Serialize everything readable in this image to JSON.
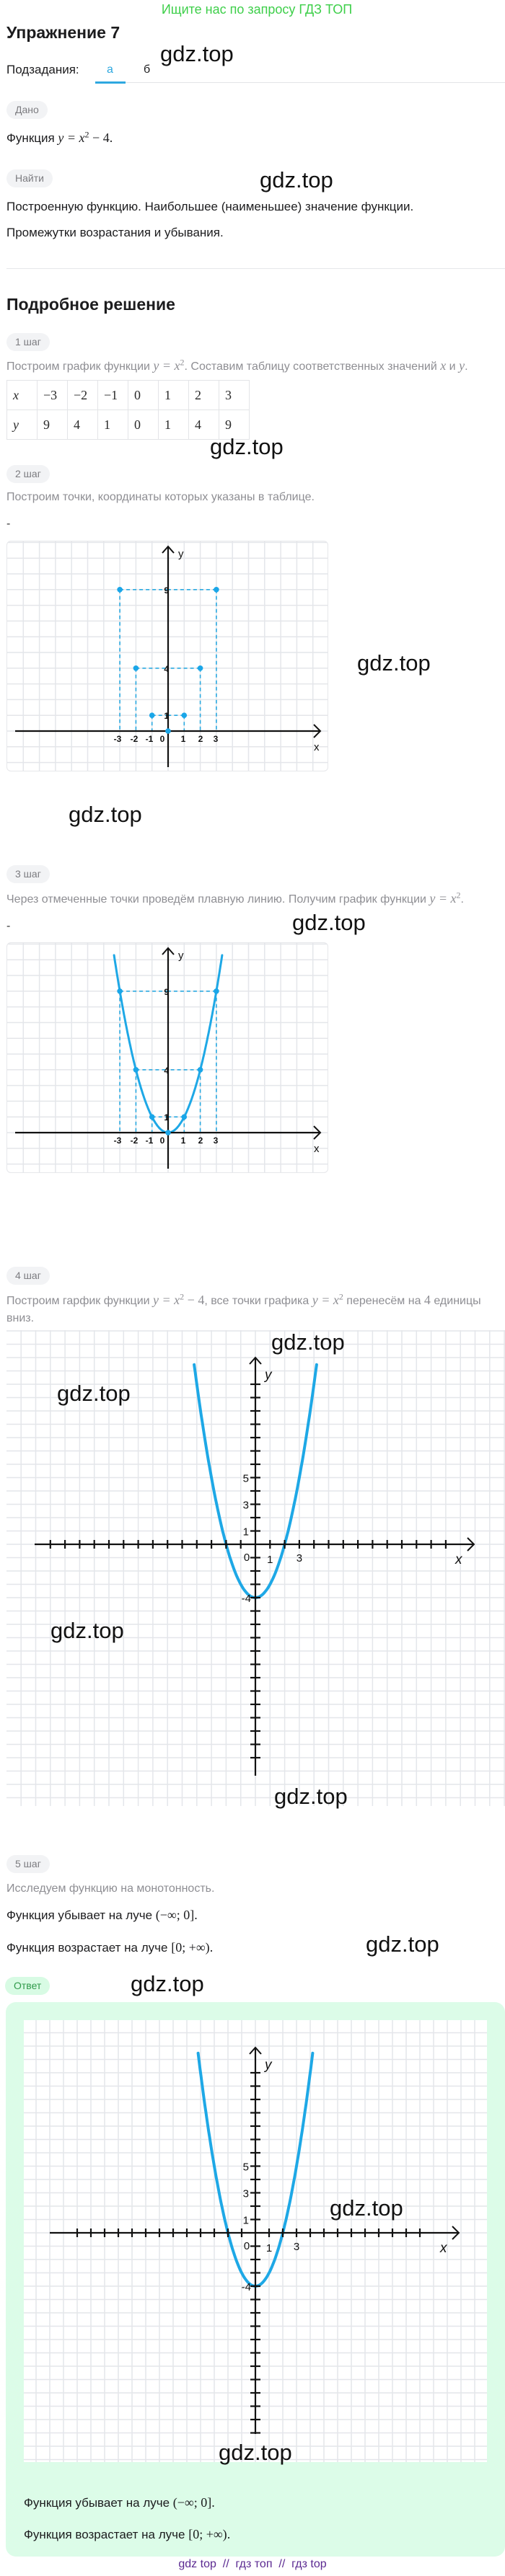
{
  "banner": "Ищите нас по запросу ГДЗ ТОП",
  "title": "Упражнение 7",
  "subtasks": {
    "label": "Подзадания:",
    "tabs": [
      "а",
      "б"
    ],
    "active": "а"
  },
  "given": {
    "badge": "Дано",
    "prefix": "Функция ",
    "math": "y = x",
    "sup": "2",
    "math2": " − 4",
    "suffix": "."
  },
  "find": {
    "badge": "Найти",
    "lines": [
      "Построенную функцию. Наибольшее (наименьшее) значение функции.",
      "Промежутки возрастания и убывания."
    ]
  },
  "solution_heading": "Подробное решение",
  "steps": [
    {
      "badge": "1 шаг",
      "t1": "Построим график функции ",
      "m1": "y = x",
      "s1": "2",
      "t2": ". Составим таблицу соответственных значений ",
      "m2": "x",
      "t3": " и ",
      "m3": "y",
      "t4": "."
    },
    {
      "badge": "2 шаг",
      "t1": "Построим точки, координаты которых указаны в таблице.",
      "dash": "-"
    },
    {
      "badge": "3 шаг",
      "t1": "Через отмеченные точки проведём плавную линию. Получим график функции ",
      "m1": "y = x",
      "s1": "2",
      "t2": ".",
      "dash": "-"
    },
    {
      "badge": "4 шаг",
      "t1": "Построим гарфик функции ",
      "m1": "y = x",
      "s1": "2",
      "m1b": " − 4",
      "t2": ", все точки графика ",
      "m2": "y = x",
      "s2": "2",
      "t3": " перенесём на ",
      "n3": "4",
      "t4": " единицы вниз."
    },
    {
      "badge": "5 шаг",
      "t1": "Исследуем функцию на монотонность.",
      "dec_prefix": "Функция убывает на луче ",
      "dec_interval": "(−∞; 0]",
      "inc_prefix": "Функция возрастает на луче ",
      "inc_interval": "[0; +∞)",
      "end": "."
    }
  ],
  "table": {
    "rows": [
      [
        "x",
        "−3",
        "−2",
        "−1",
        "0",
        "1",
        "2",
        "3"
      ],
      [
        "y",
        "9",
        "4",
        "1",
        "0",
        "1",
        "4",
        "9"
      ]
    ]
  },
  "answer": {
    "badge": "Ответ",
    "dec_prefix": "Функция убывает на луче ",
    "dec_interval": "(−∞; 0]",
    "inc_prefix": "Функция возрастает на луче ",
    "inc_interval": "[0; +∞)",
    "end": "."
  },
  "graphs": {
    "points_plot": {
      "axis_x": "x",
      "axis_y": "y",
      "x_labels": [
        "-3",
        "-2",
        "-1",
        "0",
        "1",
        "2",
        "3"
      ],
      "y_labels": [
        "9",
        "4",
        "1"
      ],
      "points": [
        [
          -3,
          9
        ],
        [
          -2,
          4
        ],
        [
          -1,
          1
        ],
        [
          0,
          0
        ],
        [
          1,
          1
        ],
        [
          2,
          4
        ],
        [
          3,
          9
        ]
      ],
      "curve": null
    },
    "parabola_plot": {
      "axis_x": "x",
      "axis_y": "y",
      "x_labels": [
        "-3",
        "-2",
        "-1",
        "0",
        "1",
        "2",
        "3"
      ],
      "y_labels": [
        "9",
        "4",
        "1"
      ],
      "points": [
        [
          -3,
          9
        ],
        [
          -2,
          4
        ],
        [
          -1,
          1
        ],
        [
          0,
          0
        ],
        [
          1,
          1
        ],
        [
          2,
          4
        ],
        [
          3,
          9
        ]
      ],
      "curve": "y = x^2"
    },
    "shifted_plot": {
      "axis_x": "x",
      "axis_y": "y",
      "x_labels": [
        "0",
        "1",
        "3"
      ],
      "y_labels": [
        "5",
        "3",
        "1",
        "-4"
      ],
      "curve": "y = x^2 - 4",
      "vertex": [
        0,
        -4
      ]
    },
    "answer_plot": {
      "axis_x": "x",
      "axis_y": "y",
      "x_labels": [
        "0",
        "1",
        "3"
      ],
      "y_labels": [
        "5",
        "3",
        "1",
        "-4"
      ],
      "curve": "y = x^2 - 4",
      "vertex": [
        0,
        -4
      ]
    }
  },
  "colors": {
    "accent": "#2ea8e0",
    "curve": "#1ea8e6",
    "banner": "#3ecf4a",
    "answer_bg": "#dcfce8",
    "footer": "#5b2a91"
  },
  "watermark": "gdz.top",
  "footer": "gdz top  //  гдз топ  //  гдз top"
}
